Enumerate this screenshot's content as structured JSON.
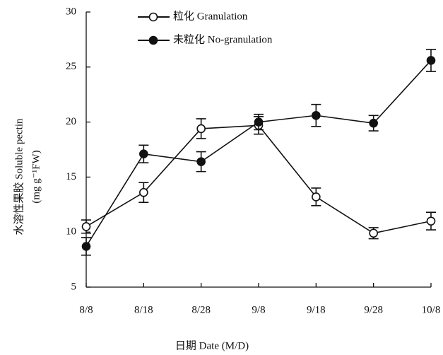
{
  "chart_data": {
    "type": "line",
    "categories": [
      "8/8",
      "8/18",
      "8/28",
      "9/8",
      "9/18",
      "9/28",
      "10/8"
    ],
    "series": [
      {
        "name": "粒化 Granulation",
        "color": "#111111",
        "marker": "open",
        "values": [
          10.5,
          13.6,
          19.4,
          19.7,
          13.2,
          9.9,
          11.0
        ],
        "errors": [
          0.6,
          0.9,
          0.9,
          0.8,
          0.8,
          0.5,
          0.8
        ]
      },
      {
        "name": "未粒化 No-granulation",
        "color": "#111111",
        "marker": "filled",
        "values": [
          8.7,
          17.1,
          16.4,
          20.0,
          20.6,
          19.9,
          25.6
        ],
        "errors": [
          0.8,
          0.8,
          0.9,
          0.7,
          1.0,
          0.7,
          1.0
        ]
      }
    ],
    "ylim": [
      5,
      30
    ],
    "yticks": [
      5,
      10,
      15,
      20,
      25,
      30
    ],
    "ylabel": "水溶性果胶  Soluble pectin",
    "ylabel_unit": "(mg g⁻¹FW)",
    "xlabel": "日期  Date  (M/D)",
    "legend": "upper left"
  }
}
